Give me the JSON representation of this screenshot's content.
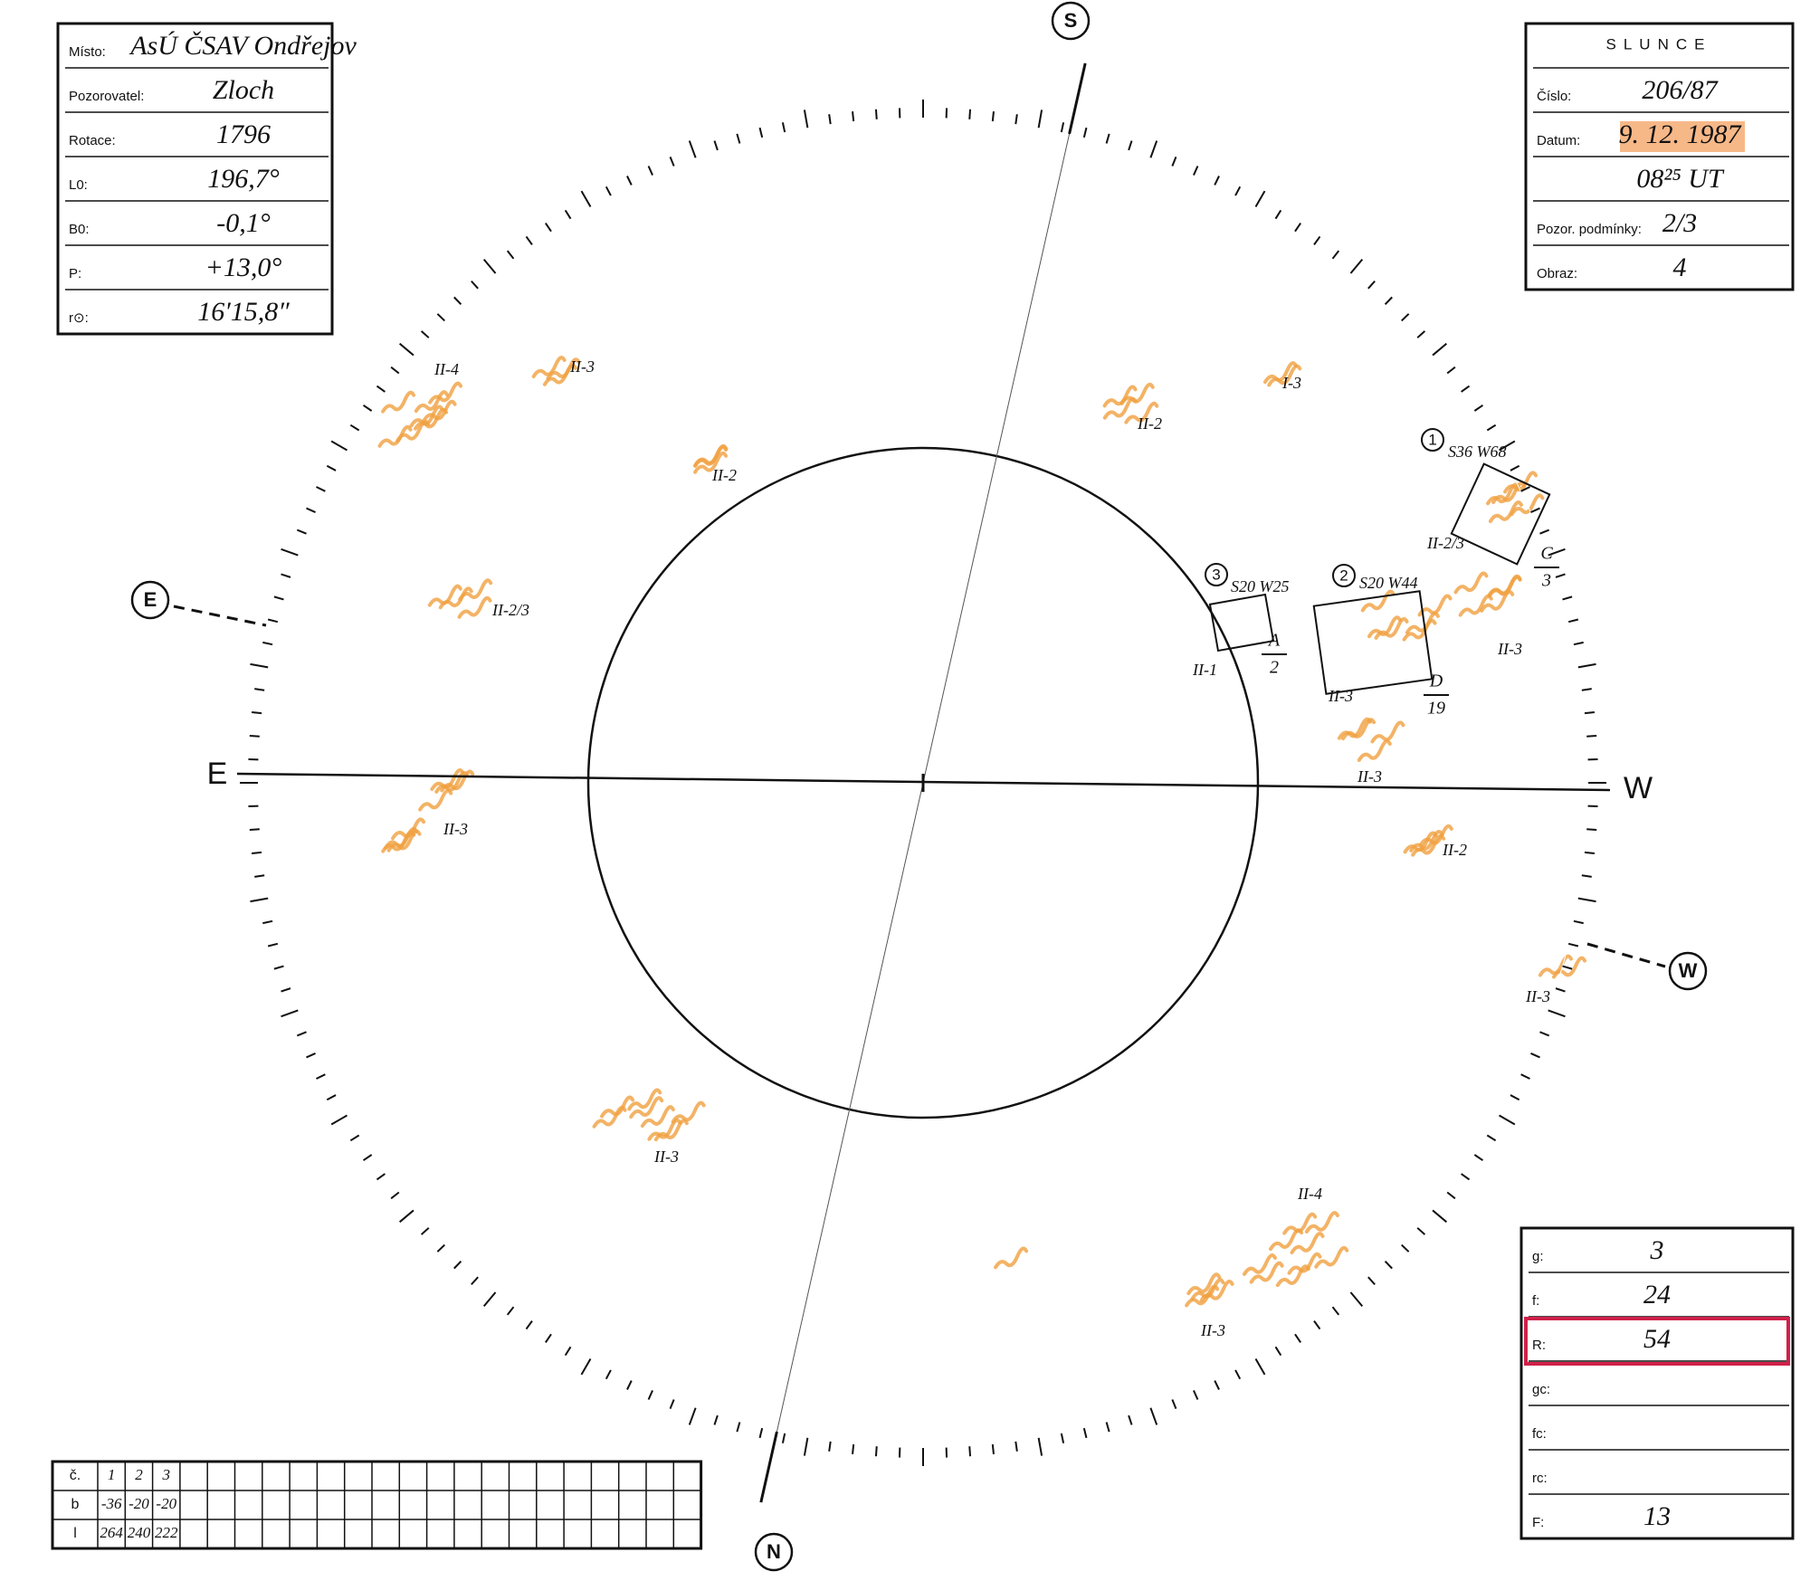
{
  "observation": {
    "rows": [
      {
        "label": "Místo:",
        "value": "AsÚ ČSAV Ondřejov"
      },
      {
        "label": "Pozorovatel:",
        "value": "Zloch"
      },
      {
        "label": "Rotace:",
        "value": "1796"
      },
      {
        "label": "L0:",
        "value": "196,7°"
      },
      {
        "label": "B0:",
        "value": "-0,1°"
      },
      {
        "label": "P:",
        "value": "+13,0°"
      },
      {
        "label": "r⊙:",
        "value": "16′15,8″"
      }
    ]
  },
  "slunce": {
    "title": "SLUNCE",
    "rows": [
      {
        "label": "Číslo:",
        "value": "206/87"
      },
      {
        "label": "Datum:",
        "value": "9. 12. 1987"
      },
      {
        "value": "08²⁵ UT"
      },
      {
        "label": "Pozor. podmínky:",
        "value": "2/3"
      },
      {
        "label": "Obraz:",
        "value": "4"
      }
    ]
  },
  "stats": {
    "rows": [
      {
        "label": "g:",
        "value": "3"
      },
      {
        "label": "f:",
        "value": "24"
      },
      {
        "label": "R:",
        "value": "54"
      },
      {
        "label": "gc:"
      },
      {
        "label": "fc:"
      },
      {
        "label": "rc:"
      },
      {
        "label": "F:",
        "value": "13"
      }
    ]
  },
  "table": {
    "rows": [
      [
        "č.",
        "1",
        "2",
        "3"
      ],
      [
        "b",
        "-36",
        "-20",
        "-20"
      ],
      [
        "l",
        "264",
        "240",
        "222"
      ]
    ]
  },
  "compass": {
    "top": "S",
    "bottom": "N",
    "left": "E",
    "right": "W"
  },
  "axis": {
    "left": "E",
    "right": "W"
  },
  "groups": [
    {
      "number": "1",
      "position": "S36 W68",
      "class": "C",
      "count": "3"
    },
    {
      "number": "2",
      "position": "S20 W44",
      "class": "D",
      "count": "19"
    },
    {
      "number": "3",
      "position": "S20 W25",
      "class": "A",
      "count": "2"
    }
  ],
  "annotations": [
    "II-4",
    "II-3",
    "II-2",
    "II-2/3",
    "II-3",
    "II-3",
    "II-1",
    "II-3",
    "II-3",
    "II-2",
    "II-3",
    "II-4",
    "II-3",
    "I-3",
    "II-2",
    "II-2/3",
    "II-3"
  ]
}
